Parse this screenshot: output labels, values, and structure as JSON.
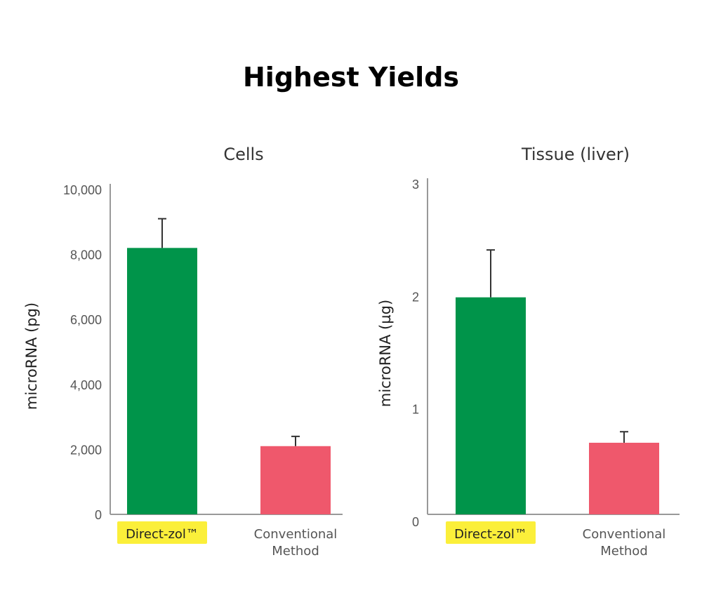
{
  "title": "Highest Yields",
  "colors": {
    "direct_zol": "#00944a",
    "conventional": "#ef586c",
    "highlight": "#fbef3a",
    "axis": "#999999"
  },
  "chart_data": [
    {
      "type": "bar",
      "title": "Cells",
      "ylabel": "microRNA (pg)",
      "ylim": [
        0,
        10000
      ],
      "yticks": [
        "0",
        "2,000",
        "4,000",
        "6,000",
        "8,000",
        "10,000"
      ],
      "ytick_values": [
        0,
        2000,
        4000,
        6000,
        8000,
        10000
      ],
      "categories": [
        "Direct-zol™",
        "Conventional Method"
      ],
      "values": [
        8200,
        2100
      ],
      "error_upper": [
        9100,
        2400
      ],
      "grid": false
    },
    {
      "type": "bar",
      "title": "Tissue (liver)",
      "ylabel": "microRNA (µg)",
      "ylim": [
        0,
        3
      ],
      "yticks": [
        "0",
        "1",
        "2",
        "3"
      ],
      "ytick_values": [
        0,
        1,
        2,
        3
      ],
      "categories": [
        "Direct-zol™",
        "Conventional Method"
      ],
      "values": [
        1.97,
        0.65
      ],
      "error_upper": [
        2.4,
        0.75
      ],
      "grid": false
    }
  ]
}
